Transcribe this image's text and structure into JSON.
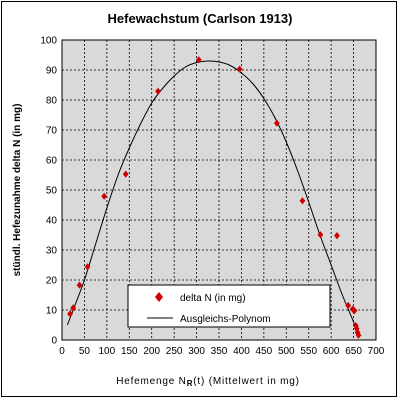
{
  "chart_data": {
    "type": "scatter",
    "title": "Hefewachstum (Carlson 1913)",
    "xlabel_prefix": "Hefemenge N",
    "xlabel_sub": "R",
    "xlabel_suffix": "(t) (Mittelwert in mg)",
    "ylabel": "stündl. Hefezunahme delta N (in mg)",
    "xlim": [
      0,
      700
    ],
    "ylim": [
      0,
      100
    ],
    "xticks": [
      0,
      50,
      100,
      150,
      200,
      250,
      300,
      350,
      400,
      450,
      500,
      550,
      600,
      650,
      700
    ],
    "yticks": [
      0,
      10,
      20,
      30,
      40,
      50,
      60,
      70,
      80,
      90,
      100
    ],
    "grid": true,
    "legend_position": "bottom-center",
    "series": [
      {
        "name": "delta N (in mg)",
        "kind": "points",
        "marker": "diamond",
        "color": "#cc0000",
        "x": [
          18,
          25,
          39,
          57,
          94,
          142,
          214,
          305,
          396,
          479,
          536,
          576,
          613,
          638,
          648,
          652,
          655,
          657,
          659,
          661
        ],
        "y": [
          8.7,
          10.7,
          18.3,
          24.4,
          47.9,
          55.3,
          82.9,
          93.4,
          90.3,
          72.3,
          46.4,
          35.1,
          34.8,
          11.5,
          10.3,
          9.8,
          4.8,
          3.8,
          2.5,
          1.6
        ]
      },
      {
        "name": "Ausgleichs-Polynom",
        "kind": "line",
        "color": "#000000",
        "x": [
          12,
          30,
          50,
          75,
          100,
          125,
          150,
          175,
          200,
          225,
          250,
          275,
          300,
          325,
          350,
          375,
          400,
          425,
          450,
          475,
          500,
          525,
          550,
          575,
          600,
          625,
          650,
          662
        ],
        "y": [
          5,
          12,
          20,
          32,
          44,
          55,
          64,
          72,
          79,
          84,
          88,
          91,
          92.5,
          93,
          92.7,
          91.5,
          89,
          85.5,
          80.5,
          74,
          66,
          56.5,
          46,
          35,
          25,
          15,
          6,
          1
        ]
      }
    ]
  },
  "colors": {
    "plot_background": "#d9d9d9",
    "grid_line": "#000000",
    "marker": "#cc0000",
    "curve": "#000000"
  }
}
